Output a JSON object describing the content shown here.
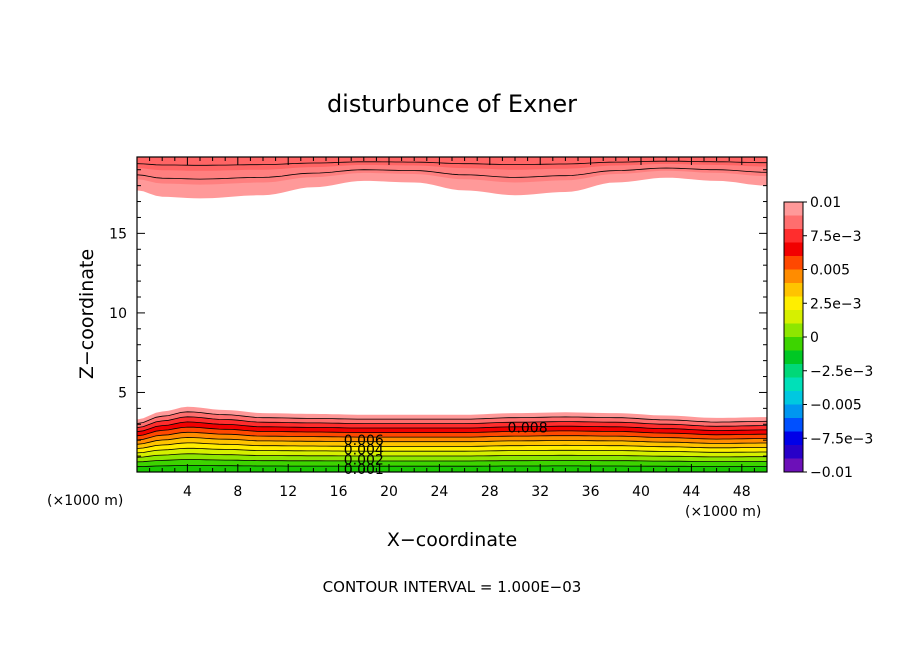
{
  "chart_data": {
    "type": "contour",
    "title": "disturbunce of Exner",
    "xlabel": "X−coordinate",
    "ylabel": "Z−coordinate",
    "x_unit": "(×1000 m)",
    "y_unit": "(×1000 m)",
    "xlim": [
      0,
      50
    ],
    "ylim": [
      0,
      19.8
    ],
    "x_ticks": [
      4,
      8,
      12,
      16,
      20,
      24,
      28,
      32,
      36,
      40,
      44,
      48
    ],
    "y_ticks": [
      5,
      10,
      15
    ],
    "contour_interval": 0.001,
    "note": "CONTOUR INTERVAL = 1.000E−03",
    "contour_labels": [
      {
        "text": "0.008",
        "x": 31.0,
        "z": 2.8
      },
      {
        "text": "0.006",
        "x": 18.0,
        "z": 2.0
      },
      {
        "text": "0.004",
        "x": 18.0,
        "z": 1.4
      },
      {
        "text": "0.002",
        "x": 18.0,
        "z": 0.8
      },
      {
        "text": "0.001",
        "x": 18.0,
        "z": 0.2
      }
    ],
    "lower_band": {
      "top_height": [
        3.3,
        3.8,
        4.1,
        3.9,
        3.7,
        3.65,
        3.6,
        3.6,
        3.6,
        3.7,
        3.75,
        3.7,
        3.55,
        3.4,
        3.45
      ],
      "x_samples": [
        0,
        2,
        4,
        7,
        10,
        14,
        18,
        22,
        26,
        30,
        34,
        38,
        42,
        46,
        50
      ]
    },
    "upper_band": {
      "bottom_height": [
        17.7,
        17.3,
        17.2,
        17.4,
        17.9,
        18.3,
        18.2,
        17.7,
        17.4,
        17.6,
        18.2,
        18.5,
        18.3,
        18.0
      ],
      "x_samples": [
        0,
        2,
        5,
        10,
        14,
        18,
        22,
        26,
        30,
        34,
        38,
        42,
        46,
        50
      ]
    },
    "colorbar": {
      "labels": [
        "0.01",
        "7.5e−3",
        "0.005",
        "2.5e−3",
        "0",
        "−2.5e−3",
        "−0.005",
        "−7.5e−3",
        "−0.01"
      ],
      "colors": [
        "#ff9999",
        "#ff6e6e",
        "#ff2d2d",
        "#f20000",
        "#ff4800",
        "#ff8c00",
        "#ffc400",
        "#ffee00",
        "#d6f000",
        "#8ee600",
        "#3dd400",
        "#00c824",
        "#00d878",
        "#00e0b8",
        "#00c8e0",
        "#0096f0",
        "#0050ff",
        "#0000e8",
        "#2800c8",
        "#6c10b8"
      ]
    },
    "grid": false,
    "legend_placement": "right"
  }
}
